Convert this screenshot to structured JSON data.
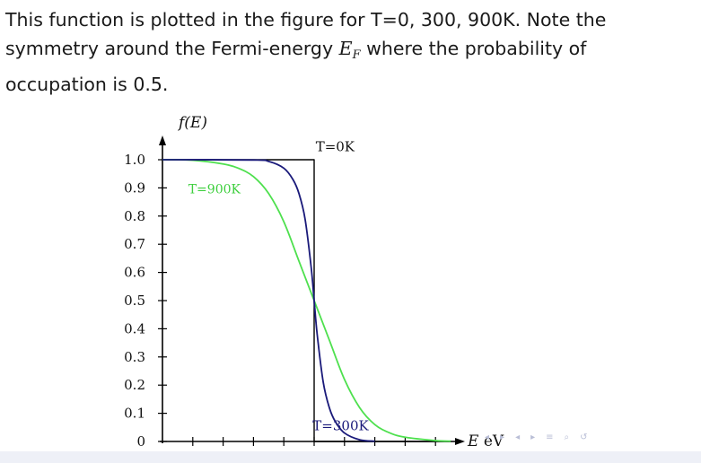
{
  "text": {
    "line1": "This function is plotted in the figure for T=0, 300, 900K. Note the",
    "line2_pre": "symmetry around the Fermi-energy ",
    "ef_main": "E",
    "ef_sub": "F",
    "line2_post": " where the probability of",
    "line3": "occupation is 0.5."
  },
  "chart_data": {
    "type": "line",
    "ylabel": "f(E)",
    "xlabel": "E eV",
    "ylim": [
      0,
      1.0
    ],
    "xlim": [
      0,
      10
    ],
    "yticks": [
      0,
      0.1,
      0.2,
      0.3,
      0.4,
      0.5,
      0.6,
      0.7,
      0.8,
      0.9,
      1.0
    ],
    "ytick_labels": [
      "0",
      "0.1",
      "0.2",
      "0.3",
      "0.4",
      "0.5",
      "0.6",
      "0.7",
      "0.8",
      "0.9",
      "1.0"
    ],
    "xticks": [
      0,
      1,
      2,
      3,
      4,
      5,
      6,
      7,
      8,
      9
    ],
    "fermi_energy": 5,
    "series": [
      {
        "name": "T=0K",
        "color": "#000000",
        "x": [
          0,
          5,
          5,
          9.5
        ],
        "y": [
          1.0,
          1.0,
          0.0,
          0.0
        ]
      },
      {
        "name": "T=300K",
        "color": "#1a1a7a",
        "x": [
          0,
          3.0,
          3.5,
          4.0,
          4.3,
          4.5,
          4.7,
          4.9,
          5.0,
          5.1,
          5.3,
          5.5,
          5.7,
          6.0,
          6.5,
          7.0
        ],
        "y": [
          1.0,
          0.999,
          0.994,
          0.97,
          0.93,
          0.88,
          0.79,
          0.62,
          0.5,
          0.38,
          0.21,
          0.12,
          0.07,
          0.03,
          0.006,
          0.001
        ]
      },
      {
        "name": "T=900K",
        "color": "#4ee04e",
        "x": [
          0,
          1.0,
          2.0,
          2.5,
          3.0,
          3.5,
          4.0,
          4.5,
          5.0,
          5.5,
          6.0,
          6.5,
          7.0,
          7.5,
          8.0,
          9.0,
          9.5
        ],
        "y": [
          1.0,
          0.998,
          0.985,
          0.97,
          0.94,
          0.88,
          0.78,
          0.64,
          0.5,
          0.36,
          0.22,
          0.12,
          0.06,
          0.03,
          0.015,
          0.003,
          0.001
        ]
      }
    ],
    "annotations": [
      {
        "text": "T=0K",
        "x": 5.05,
        "y": 1.03
      },
      {
        "text": "T=900K",
        "x": 0.85,
        "y": 0.88
      },
      {
        "text": "T=300K",
        "x": 4.95,
        "y": 0.04
      }
    ]
  },
  "nav": {
    "icons": [
      "prev-slide-icon",
      "next-slide-icon",
      "prev-section-icon",
      "next-section-icon",
      "outline-icon",
      "search-icon",
      "return-icon"
    ]
  }
}
